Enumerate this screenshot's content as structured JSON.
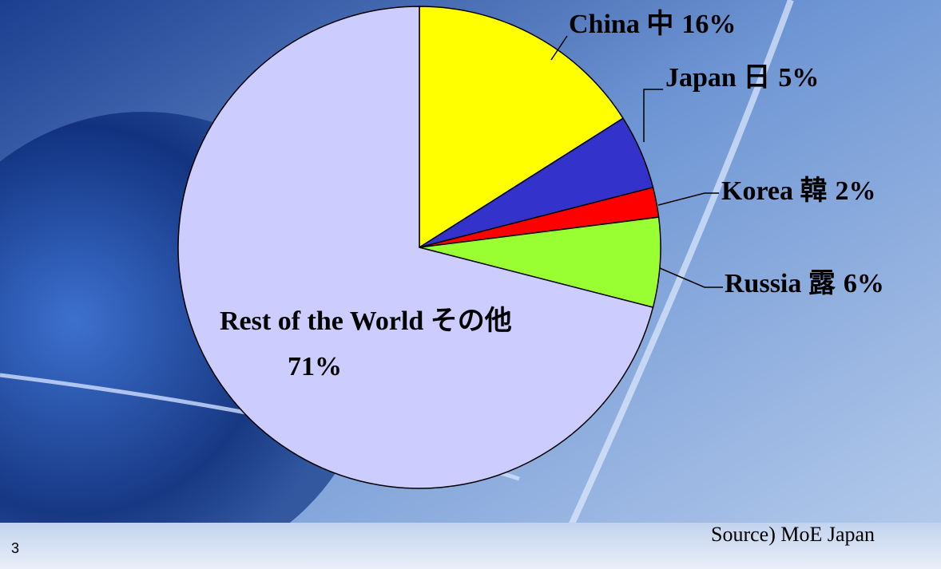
{
  "chart_data": {
    "type": "pie",
    "categories": [
      "China 中",
      "Japan 日",
      "Korea 韓",
      "Russia 露",
      "Rest of the World  その他"
    ],
    "values": [
      16,
      5,
      2,
      6,
      71
    ],
    "value_labels": [
      "16%",
      "5%",
      "2%",
      "6%",
      "71%"
    ],
    "colors": [
      "#ffff00",
      "#3333cc",
      "#ff0000",
      "#99ff33",
      "#ccccff"
    ],
    "source": "Source)  MoE Japan"
  },
  "slide_number": "3"
}
